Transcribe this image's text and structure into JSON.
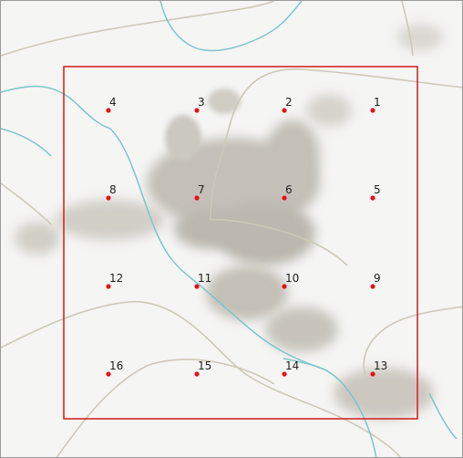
{
  "map": {
    "colors": {
      "boundary": "#d62728",
      "point": "#e0141e",
      "water": "#7fc3c9",
      "road": "#cdc8b8",
      "relief_shadow": "#8c8577",
      "background": "#f5f5f4"
    },
    "plots": [
      {
        "id": "1"
      },
      {
        "id": "2"
      },
      {
        "id": "3"
      },
      {
        "id": "4"
      },
      {
        "id": "5"
      },
      {
        "id": "6"
      },
      {
        "id": "7"
      },
      {
        "id": "8"
      },
      {
        "id": "9"
      },
      {
        "id": "10"
      },
      {
        "id": "11"
      },
      {
        "id": "12"
      },
      {
        "id": "13"
      },
      {
        "id": "14"
      },
      {
        "id": "15"
      },
      {
        "id": "16"
      }
    ]
  }
}
